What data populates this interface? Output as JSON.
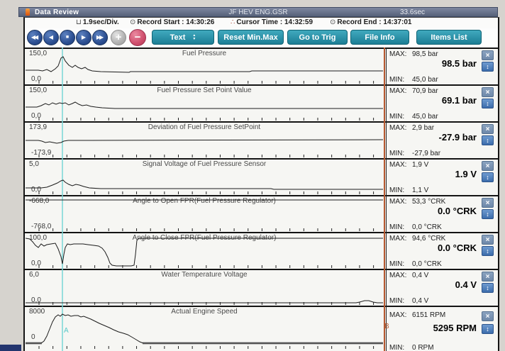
{
  "window": {
    "title": "Data Review",
    "file_name": "JF HEV ENG.GSR",
    "duration": "33.6sec"
  },
  "info": {
    "div_rate": "1.9sec/Div.",
    "record_start_label": "Record Start :",
    "record_start": "14:30:26",
    "cursor_time_label": "Cursor Time :",
    "cursor_time": "14:32:59",
    "record_end_label": "Record End :",
    "record_end": "14:37:01"
  },
  "toolbar": {
    "media_buttons": [
      {
        "name": "rewind",
        "glyph": "◀◀"
      },
      {
        "name": "step-back",
        "glyph": "◀"
      },
      {
        "name": "stop",
        "glyph": "■"
      },
      {
        "name": "play",
        "glyph": "▶"
      },
      {
        "name": "fast-forward",
        "glyph": "▶▶"
      }
    ],
    "plus_glyph": "+",
    "minus_glyph": "−",
    "text_button": "Text",
    "reset_button": "Reset Min.Max",
    "trig_button": "Go to Trig",
    "file_info_button": "File Info",
    "items_list_button": "Items List"
  },
  "strings": {
    "max_label": "MAX:",
    "min_label": "MIN:",
    "close_glyph": "×",
    "updown_glyph": "↕"
  },
  "cursors": {
    "a_label": "A",
    "b_label": "B"
  },
  "channels": [
    {
      "title": "Fuel Pressure",
      "range_top": "150,0",
      "range_bottom": "0,0",
      "max": "98,5 bar",
      "current": "98.5 bar",
      "min": "45,0 bar",
      "waveform": [
        [
          1,
          30
        ],
        [
          19,
          30
        ],
        [
          25,
          31
        ],
        [
          31,
          29
        ],
        [
          37,
          32
        ],
        [
          43,
          28
        ],
        [
          47,
          24
        ],
        [
          51,
          13
        ],
        [
          54,
          11
        ],
        [
          57,
          17
        ],
        [
          62,
          23
        ],
        [
          67,
          26
        ],
        [
          71,
          23
        ],
        [
          75,
          26
        ],
        [
          80,
          28
        ],
        [
          85,
          26
        ],
        [
          89,
          29
        ],
        [
          95,
          31
        ],
        [
          107,
          32
        ],
        [
          147,
          33
        ],
        [
          149,
          32
        ],
        [
          317,
          32
        ],
        [
          320,
          31
        ],
        [
          505,
          31
        ]
      ]
    },
    {
      "title": "Fuel Pressure Set Point Value",
      "range_top": "150,0",
      "range_bottom": "0,0",
      "max": "70,9 bar",
      "current": "69.1 bar",
      "min": "45,0 bar",
      "waveform": [
        [
          1,
          30
        ],
        [
          17,
          30
        ],
        [
          23,
          28
        ],
        [
          29,
          25
        ],
        [
          34,
          27
        ],
        [
          39,
          24
        ],
        [
          44,
          26
        ],
        [
          49,
          24
        ],
        [
          53,
          25
        ],
        [
          57,
          24
        ],
        [
          62,
          27
        ],
        [
          67,
          25
        ],
        [
          71,
          23
        ],
        [
          76,
          26
        ],
        [
          81,
          28
        ],
        [
          87,
          27
        ],
        [
          93,
          29
        ],
        [
          100,
          30
        ],
        [
          109,
          31
        ],
        [
          127,
          32
        ],
        [
          505,
          32
        ]
      ]
    },
    {
      "title": "Deviation of Fuel Pressure SetPoint",
      "range_top": "173,9",
      "range_bottom": "-173,9",
      "max": "2,9 bar",
      "current": "-27.9 bar",
      "min": "-27,9 bar",
      "waveform": [
        [
          1,
          25
        ],
        [
          19,
          25
        ],
        [
          24,
          26
        ],
        [
          29,
          28
        ],
        [
          35,
          27
        ],
        [
          40,
          28
        ],
        [
          45,
          29
        ],
        [
          51,
          28
        ],
        [
          55,
          26
        ],
        [
          61,
          25
        ],
        [
          87,
          25
        ],
        [
          505,
          24
        ]
      ]
    },
    {
      "title": "Signal Voltage of Fuel Pressure Sensor",
      "range_top": "5,0",
      "range_bottom": "0,0",
      "max": "1,9 V",
      "current": "1.9 V",
      "min": "1,1 V",
      "waveform": [
        [
          1,
          40
        ],
        [
          23,
          40
        ],
        [
          31,
          39
        ],
        [
          39,
          36
        ],
        [
          46,
          33
        ],
        [
          51,
          30
        ],
        [
          54,
          29
        ],
        [
          57,
          32
        ],
        [
          62,
          35
        ],
        [
          67,
          37
        ],
        [
          72,
          35
        ],
        [
          77,
          36
        ],
        [
          83,
          38
        ],
        [
          91,
          40
        ],
        [
          107,
          41
        ],
        [
          347,
          41
        ],
        [
          351,
          42
        ],
        [
          505,
          42
        ]
      ]
    },
    {
      "title": "Angle to Open FPR(Fuel Pressure Regulator)",
      "range_top": "-668,0",
      "range_bottom": "-768,0",
      "max": "53,3 °CRK",
      "current": "0.0 °CRK",
      "min": "0,0 °CRK",
      "waveform": [
        [
          1,
          5
        ],
        [
          505,
          5
        ]
      ]
    },
    {
      "title": "Angle to Close FPR(Fuel Pressure Regulator)",
      "range_top": "100,0",
      "range_bottom": "0,0",
      "max": "94,6 °CRK",
      "current": "0.0 °CRK",
      "min": "0,0 °CRK",
      "waveform": [
        [
          1,
          7
        ],
        [
          7,
          8
        ],
        [
          11,
          12
        ],
        [
          15,
          17
        ],
        [
          19,
          20
        ],
        [
          23,
          15
        ],
        [
          27,
          18
        ],
        [
          31,
          16
        ],
        [
          37,
          15
        ],
        [
          43,
          14
        ],
        [
          47,
          22
        ],
        [
          51,
          33
        ],
        [
          53,
          43
        ],
        [
          55,
          30
        ],
        [
          57,
          20
        ],
        [
          60,
          15
        ],
        [
          64,
          16
        ],
        [
          69,
          15
        ],
        [
          75,
          15
        ],
        [
          82,
          15
        ],
        [
          89,
          16
        ],
        [
          97,
          17
        ],
        [
          104,
          18
        ],
        [
          109,
          21
        ],
        [
          113,
          26
        ],
        [
          117,
          34
        ],
        [
          120,
          42
        ],
        [
          123,
          45
        ],
        [
          129,
          46
        ],
        [
          150,
          46
        ],
        [
          154,
          45
        ],
        [
          156,
          30
        ],
        [
          158,
          10
        ],
        [
          161,
          7
        ],
        [
          505,
          7
        ]
      ]
    },
    {
      "title": "Water Temperature Voltage",
      "range_top": "6,0",
      "range_bottom": "0,0",
      "max": "0,4 V",
      "current": "0.4 V",
      "min": "0,4 V",
      "waveform": [
        [
          1,
          46
        ],
        [
          467,
          46
        ],
        [
          472,
          45
        ],
        [
          479,
          43
        ],
        [
          485,
          43
        ],
        [
          491,
          45
        ],
        [
          497,
          46
        ],
        [
          505,
          46
        ]
      ]
    },
    {
      "title": "Actual Engine Speed",
      "range_top": "8000",
      "range_bottom": "0",
      "max": "6151 RPM",
      "current": "5295 RPM",
      "min": "0 RPM",
      "waveform": [
        [
          1,
          51
        ],
        [
          23,
          51
        ],
        [
          27,
          48
        ],
        [
          31,
          41
        ],
        [
          35,
          31
        ],
        [
          39,
          21
        ],
        [
          43,
          14
        ],
        [
          47,
          11
        ],
        [
          50,
          13
        ],
        [
          53,
          10
        ],
        [
          57,
          12
        ],
        [
          61,
          11
        ],
        [
          65,
          13
        ],
        [
          70,
          12
        ],
        [
          75,
          12
        ],
        [
          79,
          14
        ],
        [
          83,
          13
        ],
        [
          88,
          15
        ],
        [
          93,
          17
        ],
        [
          99,
          20
        ],
        [
          105,
          23
        ],
        [
          112,
          26
        ],
        [
          119,
          29
        ],
        [
          125,
          32
        ],
        [
          132,
          35
        ],
        [
          139,
          37
        ],
        [
          145,
          39
        ],
        [
          152,
          43
        ],
        [
          157,
          46
        ],
        [
          162,
          49
        ],
        [
          167,
          51
        ],
        [
          505,
          51
        ]
      ],
      "gray_segments": [
        [
          [
            1,
            51
          ],
          [
            24,
            51
          ]
        ],
        [
          [
            166,
            51
          ],
          [
            505,
            51
          ]
        ]
      ]
    }
  ]
}
